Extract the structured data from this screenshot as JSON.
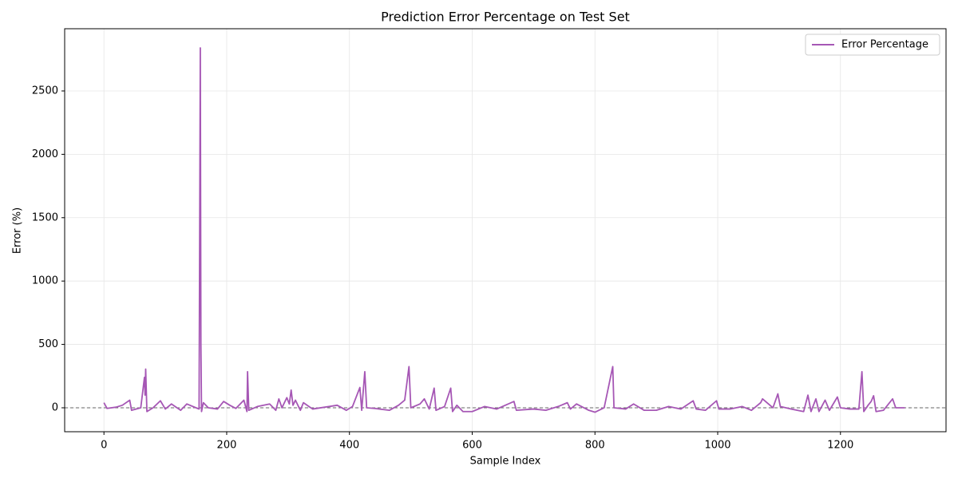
{
  "chart_data": {
    "type": "line",
    "title": "Prediction Error Percentage on Test Set",
    "x_label": "Sample Index",
    "y_label": "Error (%)",
    "x": [
      0,
      5,
      20,
      30,
      42,
      45,
      60,
      66,
      67,
      68,
      70,
      80,
      92,
      100,
      110,
      125,
      135,
      150,
      155,
      157,
      158,
      159,
      162,
      170,
      185,
      195,
      205,
      215,
      228,
      233,
      234,
      236,
      250,
      270,
      280,
      285,
      290,
      298,
      302,
      305,
      308,
      312,
      320,
      325,
      340,
      360,
      380,
      395,
      405,
      417,
      420,
      425,
      428,
      440,
      465,
      480,
      490,
      497,
      500,
      515,
      522,
      530,
      538,
      541,
      555,
      565,
      568,
      575,
      585,
      600,
      620,
      640,
      668,
      672,
      700,
      720,
      740,
      755,
      760,
      770,
      790,
      800,
      815,
      829,
      831,
      850,
      863,
      880,
      900,
      920,
      940,
      960,
      965,
      980,
      998,
      1002,
      1020,
      1040,
      1055,
      1070,
      1073,
      1090,
      1098,
      1102,
      1120,
      1140,
      1147,
      1152,
      1160,
      1165,
      1175,
      1182,
      1195,
      1200,
      1215,
      1230,
      1235,
      1238,
      1245,
      1250,
      1254,
      1258,
      1270,
      1285,
      1290,
      1305
    ],
    "series": [
      {
        "name": "Error Percentage",
        "color": "#a657b5",
        "values": [
          40,
          -5,
          5,
          20,
          60,
          -20,
          0,
          240,
          100,
          305,
          -30,
          0,
          55,
          -10,
          30,
          -20,
          30,
          0,
          -10,
          2840,
          500,
          -30,
          40,
          0,
          -10,
          50,
          20,
          -5,
          60,
          -30,
          285,
          -20,
          10,
          30,
          -20,
          70,
          0,
          80,
          30,
          140,
          20,
          60,
          -20,
          40,
          -10,
          5,
          20,
          -20,
          10,
          160,
          -20,
          285,
          0,
          -5,
          -20,
          20,
          60,
          325,
          0,
          30,
          70,
          -10,
          155,
          -20,
          10,
          155,
          -30,
          20,
          -30,
          -30,
          10,
          -10,
          50,
          -20,
          -10,
          -20,
          10,
          40,
          -10,
          30,
          -20,
          -35,
          0,
          325,
          0,
          -10,
          30,
          -20,
          -20,
          10,
          -10,
          55,
          -10,
          -20,
          55,
          -10,
          -10,
          10,
          -20,
          40,
          70,
          0,
          110,
          10,
          -10,
          -30,
          100,
          -30,
          70,
          -30,
          60,
          -20,
          85,
          0,
          -10,
          -10,
          285,
          -30,
          20,
          50,
          95,
          -30,
          -20,
          70,
          0,
          0
        ]
      }
    ],
    "xlim": [
      -64,
      1372
    ],
    "ylim": [
      -189,
      2991
    ],
    "xticks": [
      0,
      200,
      400,
      600,
      800,
      1000,
      1200
    ],
    "yticks": [
      0,
      500,
      1000,
      1500,
      2000,
      2500
    ],
    "grid": true,
    "zero_line": true,
    "legend": "upper right"
  }
}
